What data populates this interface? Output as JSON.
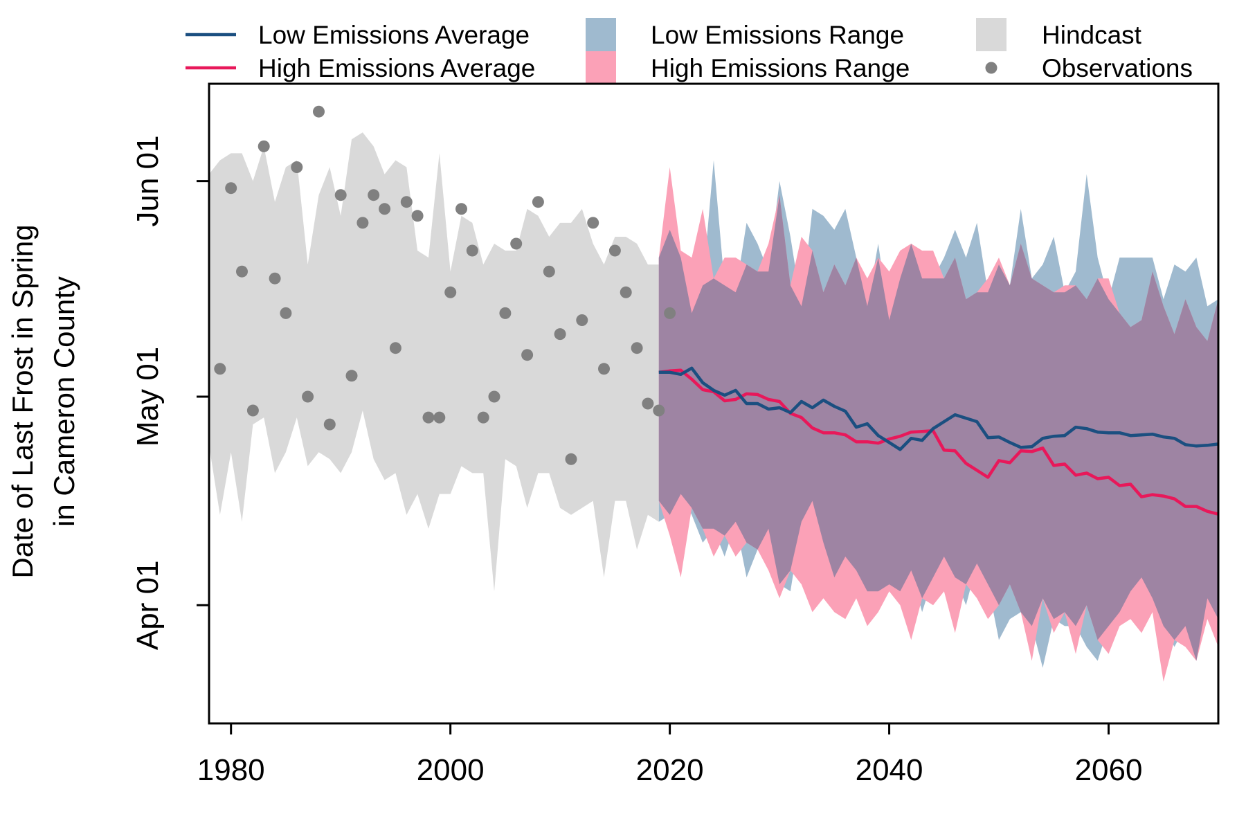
{
  "chart_data": {
    "type": "line",
    "title": "",
    "xlabel": "",
    "ylabel": [
      "Date of Last Frost in Spring",
      "in Cameron County"
    ],
    "xlim": [
      1978,
      2070
    ],
    "ylim": [
      -47,
      45
    ],
    "y_units": "days from May 01",
    "xticks": [
      1980,
      2000,
      2020,
      2040,
      2060
    ],
    "yticks": [
      {
        "value": -30,
        "label": "Apr 01"
      },
      {
        "value": 0,
        "label": "May 01"
      },
      {
        "value": 31,
        "label": "Jun 01"
      }
    ],
    "grid": false,
    "legend_position": "top",
    "legend": [
      {
        "label": "Low Emissions Average",
        "kind": "line",
        "color": "#1b4f80"
      },
      {
        "label": "High Emissions Average",
        "kind": "line",
        "color": "#e8185a"
      },
      {
        "label": "Low Emissions Range",
        "kind": "box",
        "color": "#9fbacf"
      },
      {
        "label": "High Emissions Range",
        "kind": "box",
        "color": "#fba1b7"
      },
      {
        "label": "Hindcast",
        "kind": "box",
        "color": "#d9d9d9"
      },
      {
        "label": "Observations",
        "kind": "point",
        "color": "#808080"
      }
    ],
    "colors": {
      "low_line": "#1b4f80",
      "high_line": "#e8185a",
      "low_range": "#9fbacf",
      "high_range": "#fba1b7",
      "overlap": "#9e84a3",
      "hindcast": "#d9d9d9",
      "observations": "#808080"
    },
    "hindcast_range": {
      "x": [
        1978,
        1979,
        1980,
        1981,
        1982,
        1983,
        1984,
        1985,
        1986,
        1987,
        1988,
        1989,
        1990,
        1991,
        1992,
        1993,
        1994,
        1995,
        1996,
        1997,
        1998,
        1999,
        2000,
        2001,
        2002,
        2003,
        2004,
        2005,
        2006,
        2007,
        2008,
        2009,
        2010,
        2011,
        2012,
        2013,
        2014,
        2015,
        2016,
        2017,
        2018,
        2019
      ],
      "upper": [
        32,
        34,
        35,
        35,
        31,
        36,
        28,
        33,
        34,
        19,
        29,
        33,
        26,
        37,
        38,
        36,
        32,
        34,
        33,
        21,
        20,
        35,
        18,
        26,
        25,
        19,
        22,
        21,
        21,
        27,
        26,
        23,
        25,
        25,
        27,
        22,
        19,
        23,
        23,
        22,
        19,
        19
      ],
      "lower": [
        -7,
        -17,
        -8,
        -18,
        -4,
        -3,
        -11,
        -8,
        -3,
        -10,
        -8,
        -9,
        -11,
        -8,
        -2,
        -9,
        -12,
        -11,
        -17,
        -14,
        -19,
        -14,
        -14,
        -10,
        -11,
        -11,
        -28,
        -9,
        -10,
        -16,
        -11,
        -11,
        -16,
        -17,
        -16,
        -15,
        -26,
        -15,
        -15,
        -22,
        -17,
        -18
      ]
    },
    "observations": {
      "x": [
        1979,
        1980,
        1981,
        1982,
        1983,
        1984,
        1985,
        1986,
        1987,
        1988,
        1989,
        1990,
        1991,
        1992,
        1993,
        1994,
        1995,
        1996,
        1997,
        1998,
        1999,
        2000,
        2001,
        2002,
        2003,
        2004,
        2005,
        2006,
        2007,
        2008,
        2009,
        2010,
        2011,
        2012,
        2013,
        2014,
        2015,
        2016,
        2017,
        2018,
        2019,
        2020
      ],
      "y": [
        4,
        30,
        18,
        -2,
        36,
        17,
        12,
        33,
        0,
        41,
        -4,
        29,
        3,
        25,
        29,
        27,
        7,
        28,
        26,
        -3,
        -3,
        15,
        27,
        21,
        -3,
        0,
        12,
        22,
        6,
        28,
        18,
        9,
        -9,
        11,
        25,
        4,
        21,
        15,
        7,
        -1,
        -2,
        12
      ]
    },
    "low_emissions_range": {
      "x": [
        2019,
        2020,
        2021,
        2022,
        2023,
        2024,
        2025,
        2026,
        2027,
        2028,
        2029,
        2030,
        2031,
        2032,
        2033,
        2034,
        2035,
        2036,
        2037,
        2038,
        2039,
        2040,
        2041,
        2042,
        2043,
        2044,
        2045,
        2046,
        2047,
        2048,
        2049,
        2050,
        2051,
        2052,
        2053,
        2054,
        2055,
        2056,
        2057,
        2058,
        2059,
        2060,
        2061,
        2062,
        2063,
        2064,
        2065,
        2066,
        2067,
        2068,
        2069,
        2070
      ],
      "upper": [
        20,
        24,
        20,
        12,
        16,
        34,
        16,
        15,
        25,
        22,
        18,
        31,
        23,
        13,
        27,
        26,
        24,
        27,
        20,
        13,
        22,
        11,
        17,
        22,
        17,
        17,
        20,
        24,
        20,
        25,
        15,
        19,
        16,
        27,
        17,
        19,
        23,
        15,
        18,
        32,
        20,
        14,
        20,
        20,
        20,
        20,
        14,
        19,
        18,
        20,
        13,
        14
      ],
      "lower": [
        -18,
        -17,
        -14,
        -17,
        -21,
        -19,
        -23,
        -18,
        -26,
        -22,
        -19,
        -27,
        -28,
        -18,
        -15,
        -21,
        -26,
        -23,
        -25,
        -28,
        -28,
        -27,
        -28,
        -25,
        -31,
        -26,
        -23,
        -26,
        -30,
        -24,
        -27,
        -35,
        -32,
        -31,
        -33,
        -39,
        -32,
        -33,
        -33,
        -36,
        -38,
        -33,
        -31,
        -28,
        -26,
        -29,
        -33,
        -36,
        -33,
        -38,
        -29,
        -32
      ]
    },
    "high_emissions_range": {
      "x": [
        2019,
        2020,
        2021,
        2022,
        2023,
        2024,
        2025,
        2026,
        2027,
        2028,
        2029,
        2030,
        2031,
        2032,
        2033,
        2034,
        2035,
        2036,
        2037,
        2038,
        2039,
        2040,
        2041,
        2042,
        2043,
        2044,
        2045,
        2046,
        2047,
        2048,
        2049,
        2050,
        2051,
        2052,
        2053,
        2054,
        2055,
        2056,
        2057,
        2058,
        2059,
        2060,
        2061,
        2062,
        2063,
        2064,
        2065,
        2066,
        2067,
        2068,
        2069,
        2070
      ],
      "upper": [
        20,
        33,
        21,
        20,
        27,
        17,
        20,
        20,
        19,
        18,
        22,
        29,
        16,
        23,
        21,
        15,
        19,
        16,
        20,
        17,
        20,
        18,
        21,
        22,
        21,
        21,
        17,
        20,
        14,
        15,
        17,
        20,
        16,
        22,
        17,
        16,
        15,
        16,
        16,
        14,
        17,
        17,
        12,
        10,
        11,
        18,
        13,
        9,
        14,
        10,
        8,
        14
      ],
      "lower": [
        -15,
        -20,
        -26,
        -16,
        -19,
        -23,
        -20,
        -23,
        -21,
        -22,
        -25,
        -29,
        -25,
        -27,
        -31,
        -29,
        -31,
        -32,
        -29,
        -33,
        -31,
        -28,
        -30,
        -35,
        -29,
        -30,
        -28,
        -34,
        -27,
        -29,
        -32,
        -30,
        -27,
        -31,
        -38,
        -29,
        -34,
        -31,
        -37,
        -30,
        -35,
        -37,
        -33,
        -32,
        -34,
        -31,
        -41,
        -35,
        -36,
        -38,
        -32,
        -36
      ]
    },
    "series": [
      {
        "name": "Low Emissions Average",
        "color": "#1b4f80",
        "x": [
          2019,
          2020,
          2021,
          2022,
          2023,
          2024,
          2025,
          2026,
          2027,
          2028,
          2029,
          2030,
          2031,
          2032,
          2033,
          2034,
          2035,
          2036,
          2037,
          2038,
          2039,
          2040,
          2041,
          2042,
          2043,
          2044,
          2045,
          2046,
          2047,
          2048,
          2049,
          2050,
          2051,
          2052,
          2053,
          2054,
          2055,
          2056,
          2057,
          2058,
          2059,
          2060,
          2061,
          2062,
          2063,
          2064,
          2065,
          2066,
          2067,
          2068,
          2069,
          2070
        ],
        "values": [
          3.5,
          3.5,
          3.2,
          4.1,
          2.0,
          0.9,
          0.2,
          0.9,
          -1.0,
          -1.0,
          -1.8,
          -1.6,
          -2.3,
          -0.7,
          -1.6,
          -0.5,
          -1.4,
          -2.1,
          -4.4,
          -3.9,
          -5.6,
          -6.6,
          -7.6,
          -6.0,
          -6.3,
          -4.6,
          -3.6,
          -2.6,
          -3.1,
          -3.6,
          -5.9,
          -5.8,
          -6.6,
          -7.3,
          -7.2,
          -6.0,
          -5.7,
          -5.6,
          -4.4,
          -4.6,
          -5.1,
          -5.2,
          -5.2,
          -5.6,
          -5.5,
          -5.4,
          -5.8,
          -6.0,
          -6.9,
          -7.1,
          -7.0,
          -6.8
        ]
      },
      {
        "name": "High Emissions Average",
        "color": "#e8185a",
        "x": [
          2019,
          2020,
          2021,
          2022,
          2023,
          2024,
          2025,
          2026,
          2027,
          2028,
          2029,
          2030,
          2031,
          2032,
          2033,
          2034,
          2035,
          2036,
          2037,
          2038,
          2039,
          2040,
          2041,
          2042,
          2043,
          2044,
          2045,
          2046,
          2047,
          2048,
          2049,
          2050,
          2051,
          2052,
          2053,
          2054,
          2055,
          2056,
          2057,
          2058,
          2059,
          2060,
          2061,
          2062,
          2063,
          2064,
          2065,
          2066,
          2067,
          2068,
          2069,
          2070
        ],
        "values": [
          3.5,
          3.7,
          3.8,
          2.5,
          1.0,
          0.7,
          -0.6,
          -0.4,
          0.4,
          0.3,
          -0.4,
          -0.7,
          -2.4,
          -3.0,
          -4.5,
          -5.2,
          -5.2,
          -5.5,
          -6.5,
          -6.5,
          -6.7,
          -6.1,
          -5.7,
          -5.1,
          -5.0,
          -4.9,
          -7.7,
          -7.8,
          -9.6,
          -10.6,
          -11.6,
          -9.2,
          -9.5,
          -7.8,
          -7.9,
          -7.4,
          -9.9,
          -9.7,
          -11.3,
          -11.0,
          -11.8,
          -11.6,
          -12.8,
          -12.6,
          -14.4,
          -14.1,
          -14.3,
          -14.7,
          -15.8,
          -15.8,
          -16.5,
          -16.9
        ]
      }
    ]
  }
}
